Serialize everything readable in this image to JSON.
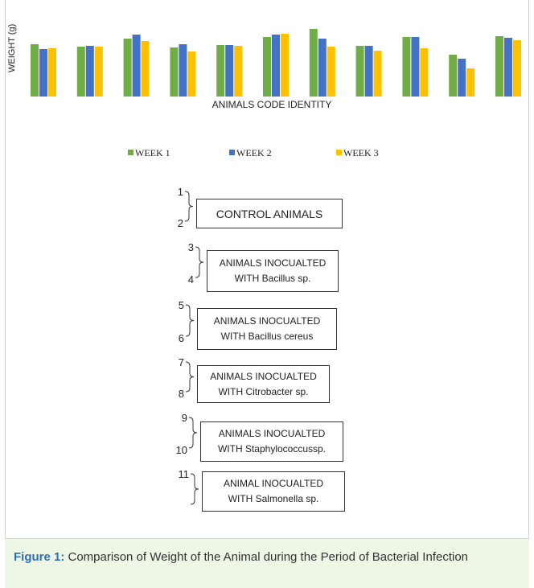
{
  "chart_data": {
    "type": "bar",
    "ylabel": "WEIGHT (g)",
    "xlabel": "ANIMALS CODE IDENTITY",
    "categories": [
      "1",
      "2",
      "3",
      "4",
      "5",
      "6",
      "7",
      "8",
      "9",
      "10",
      "11"
    ],
    "series": [
      {
        "name": "WEEK 1",
        "color": "#70ad47",
        "values": [
          65,
          62,
          72,
          61,
          64,
          74,
          84,
          63,
          74,
          52,
          75
        ]
      },
      {
        "name": "WEEK 2",
        "color": "#4472c4",
        "values": [
          59,
          63,
          77,
          65,
          64,
          77,
          72,
          63,
          74,
          47,
          73
        ]
      },
      {
        "name": "WEEK 3",
        "color": "#ffc000",
        "values": [
          60,
          62,
          69,
          56,
          63,
          78,
          62,
          57,
          60,
          35,
          70
        ]
      }
    ],
    "legend_position": "bottom"
  },
  "groups": [
    {
      "top": "1",
      "bottom": "2",
      "lines": [
        "CONTROL ANIMALS"
      ]
    },
    {
      "top": "3",
      "bottom": "4",
      "lines": [
        "ANIMALS INOCUALTED",
        "WITH Bacillus sp."
      ]
    },
    {
      "top": "5",
      "bottom": "6",
      "lines": [
        "ANIMALS INOCUALTED",
        "WITH Bacillus cereus"
      ]
    },
    {
      "top": "7",
      "bottom": "8",
      "lines": [
        "ANIMALS INOCUALTED",
        "WITH Citrobacter sp."
      ]
    },
    {
      "top": "9",
      "bottom": "10",
      "lines": [
        "ANIMALS INOCUALTED",
        "WITH Staphylococcussp."
      ]
    },
    {
      "top": "11",
      "bottom": "",
      "lines": [
        "ANIMAL INOCUALTED",
        "WITH Salmonella sp."
      ]
    }
  ],
  "caption": {
    "label": "Figure 1:",
    "text": " Comparison of Weight of the Animal during the Period of Bacterial Infection"
  }
}
